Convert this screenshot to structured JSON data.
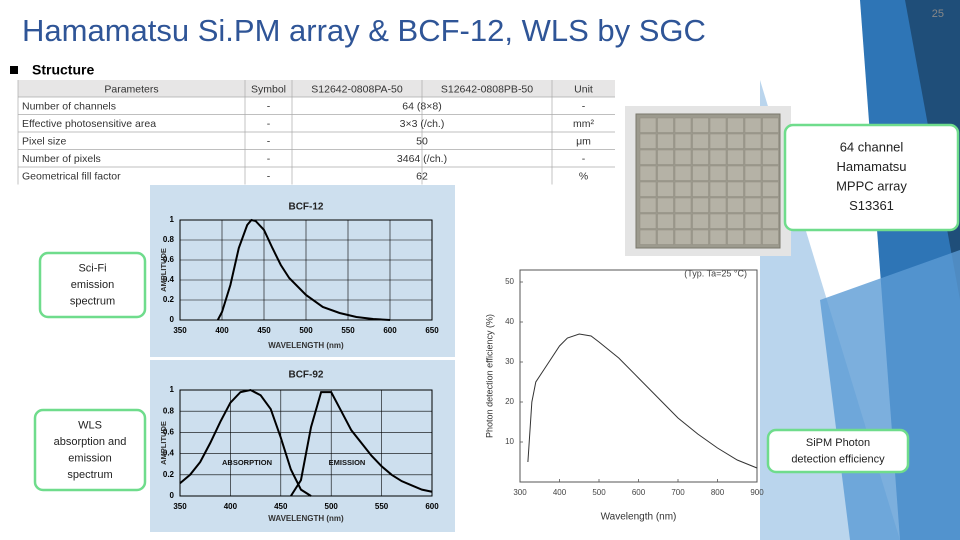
{
  "slide": {
    "title": "Hamamatsu Si.PM array & BCF-12, WLS by SGC",
    "page_number": "25",
    "section": "Structure"
  },
  "table": {
    "header": [
      "Parameters",
      "Symbol",
      "S12642-0808PA-50",
      "S12642-0808PB-50",
      "Unit"
    ],
    "rows": [
      [
        "Number of channels",
        "-",
        "64 (8×8)",
        "-"
      ],
      [
        "Effective photosensitive area",
        "-",
        "3×3 (/ch.)",
        "mm²"
      ],
      [
        "Pixel size",
        "-",
        "50",
        "μm"
      ],
      [
        "Number of pixels",
        "-",
        "3464 (/ch.)",
        "-"
      ],
      [
        "Geometrical fill factor",
        "-",
        "62",
        "%"
      ]
    ]
  },
  "callouts": [
    "64 channel Hamamatsu MPPC array S13361",
    "Sci-Fi emission spectrum",
    "WLS absorption and emission spectrum",
    "SiPM Photon detection efficiency"
  ],
  "chart_data": [
    {
      "type": "line",
      "title": "BCF-12",
      "x_label": "WAVELENGTH (nm)",
      "y_label": "AMPLITUDE",
      "x": [
        395,
        400,
        410,
        420,
        430,
        435,
        440,
        450,
        460,
        470,
        480,
        500,
        520,
        540,
        560,
        580,
        600
      ],
      "values": [
        0,
        0.08,
        0.35,
        0.72,
        0.95,
        1,
        0.99,
        0.9,
        0.72,
        0.55,
        0.42,
        0.25,
        0.13,
        0.07,
        0.03,
        0.01,
        0
      ],
      "color": "#000000",
      "xlim": [
        350,
        650
      ],
      "xticks": [
        350,
        400,
        450,
        500,
        550,
        600,
        650
      ],
      "ylim": [
        0,
        1
      ],
      "yticks": [
        0,
        0.2,
        0.4,
        0.6,
        0.8,
        1
      ],
      "grid": true
    },
    {
      "type": "line",
      "title": "BCF-92",
      "x_label": "WAVELENGTH (nm)",
      "y_label": "AMPLITUDE",
      "x": [
        350,
        360,
        370,
        380,
        390,
        400,
        410,
        420,
        430,
        440,
        450,
        460,
        470,
        480,
        490,
        500,
        510,
        520,
        530,
        540,
        550,
        560,
        570,
        580,
        590,
        600
      ],
      "series": [
        {
          "name": "ABSORPTION",
          "color": "#000000",
          "values": [
            0.12,
            0.2,
            0.32,
            0.5,
            0.7,
            0.88,
            0.98,
            1,
            0.95,
            0.82,
            0.55,
            0.25,
            0.06,
            0,
            null,
            null,
            null,
            null,
            null,
            null,
            null,
            null,
            null,
            null,
            null,
            null
          ]
        },
        {
          "name": "EMISSION",
          "color": "#000000",
          "values": [
            null,
            null,
            null,
            null,
            null,
            null,
            null,
            null,
            null,
            null,
            null,
            0,
            0.15,
            0.65,
            0.98,
            0.98,
            0.8,
            0.62,
            0.5,
            0.38,
            0.28,
            0.2,
            0.14,
            0.1,
            0.06,
            0.04
          ]
        }
      ],
      "xlim": [
        350,
        600
      ],
      "xticks": [
        350,
        400,
        450,
        500,
        550,
        600
      ],
      "ylim": [
        0,
        1
      ],
      "yticks": [
        0,
        0.2,
        0.4,
        0.6,
        0.8,
        1
      ],
      "grid": true
    },
    {
      "type": "line",
      "annotation": "(Typ. Ta=25 °C)",
      "x_label": "Wavelength (nm)",
      "y_label": "Photon detection efficiency (%)",
      "x": [
        320,
        330,
        340,
        360,
        380,
        400,
        420,
        450,
        480,
        500,
        550,
        600,
        650,
        700,
        750,
        800,
        850,
        900
      ],
      "values": [
        5,
        20,
        25,
        28,
        31,
        34,
        36,
        37,
        36.5,
        35,
        31,
        26,
        21,
        16,
        12,
        8.5,
        5.5,
        3.5
      ],
      "color": "#333333",
      "xlim": [
        300,
        900
      ],
      "xticks": [
        300,
        400,
        500,
        600,
        700,
        800,
        900
      ],
      "ylim": [
        0,
        53
      ],
      "yticks": [
        10,
        20,
        30,
        40,
        50
      ],
      "grid": false
    }
  ]
}
